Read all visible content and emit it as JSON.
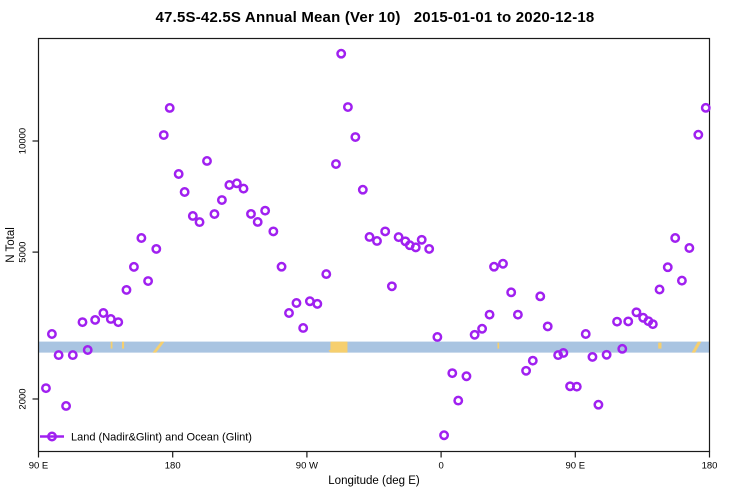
{
  "chart": {
    "title": "47.5S-42.5S Annual Mean (Ver 10)   2015-01-01 to 2020-12-18"
  },
  "chart_data": {
    "type": "scatter",
    "title": "47.5S-42.5S Annual Mean (Ver 10)   2015-01-01 to 2020-12-18",
    "xlabel": "Longitude (deg E)",
    "ylabel": "N Total",
    "x_axis": {
      "note": "longitude axis wraps eastward from 90E; plot coords run 90..540",
      "ticks": [
        {
          "lon": 90,
          "label": "90 E"
        },
        {
          "lon": 180,
          "label": "180"
        },
        {
          "lon": 270,
          "label": "90 W"
        },
        {
          "lon": 360,
          "label": "0"
        },
        {
          "lon": 450,
          "label": "90 E"
        },
        {
          "lon": 540,
          "label": "180"
        }
      ]
    },
    "y_axis": {
      "scale": "log10",
      "ticks": [
        {
          "value": 2000,
          "label": "2000"
        },
        {
          "value": 5000,
          "label": "5000"
        },
        {
          "value": 10000,
          "label": "10000"
        }
      ],
      "range": [
        1440,
        18950
      ]
    },
    "grid": false,
    "legend": {
      "position": "bottom-left",
      "label": "Land (Nadir&Glint) and Ocean (Glint)",
      "marker": "open-circle-on-line"
    },
    "colors": {
      "points": "#A020F0",
      "ocean_band": "#A9C4E1",
      "land_band": "#F6CF6E",
      "axis": "#1a1a1a"
    },
    "map_band": {
      "description": "latitude-strip world map band (ocean blue, land tan)",
      "value_range": [
        2671,
        2861
      ],
      "land_patches": [
        {
          "lon": [
            138.4,
            139.6
          ],
          "shape": "sliver"
        },
        {
          "lon": [
            146.0,
            147.4
          ],
          "shape": "sliver"
        },
        {
          "lon": [
            166.5,
            174.5
          ],
          "shape": "diag"
        },
        {
          "lon": [
            285.8,
            297.2
          ],
          "shape": "block"
        },
        {
          "lon": [
            397.8,
            398.9
          ],
          "shape": "dot"
        },
        {
          "lon": [
            505.6,
            507.8
          ],
          "shape": "dot"
        },
        {
          "lon": [
            528.0,
            534.5
          ],
          "shape": "diag"
        }
      ]
    },
    "series": [
      {
        "name": "Land (Nadir&Glint) and Ocean (Glint)",
        "marker": "open-circle",
        "color": "#A020F0",
        "points": [
          [
            95,
            2140
          ],
          [
            99,
            3000
          ],
          [
            103.5,
            2630
          ],
          [
            108.5,
            1915
          ],
          [
            113,
            2630
          ],
          [
            119.5,
            3230
          ],
          [
            123,
            2715
          ],
          [
            128,
            3275
          ],
          [
            133.5,
            3420
          ],
          [
            138.5,
            3295
          ],
          [
            143.5,
            3230
          ],
          [
            149,
            3950
          ],
          [
            154,
            4560
          ],
          [
            159,
            5460
          ],
          [
            163.5,
            4175
          ],
          [
            169,
            5100
          ],
          [
            174,
            10380
          ],
          [
            178,
            12290
          ],
          [
            184,
            8140
          ],
          [
            188,
            7275
          ],
          [
            193.5,
            6265
          ],
          [
            198,
            6030
          ],
          [
            203,
            8830
          ],
          [
            208,
            6340
          ],
          [
            213,
            6920
          ],
          [
            218,
            7600
          ],
          [
            223,
            7680
          ],
          [
            227.5,
            7430
          ],
          [
            232.5,
            6345
          ],
          [
            237,
            6035
          ],
          [
            242,
            6475
          ],
          [
            247.5,
            5690
          ],
          [
            253,
            4565
          ],
          [
            258,
            3420
          ],
          [
            263,
            3640
          ],
          [
            267.5,
            3115
          ],
          [
            272,
            3680
          ],
          [
            277,
            3620
          ],
          [
            283,
            4360
          ],
          [
            289.5,
            8660
          ],
          [
            293,
            17240
          ],
          [
            297.5,
            12360
          ],
          [
            302.5,
            10250
          ],
          [
            307.5,
            7380
          ],
          [
            312,
            5495
          ],
          [
            317,
            5360
          ],
          [
            322.5,
            5690
          ],
          [
            327,
            4040
          ],
          [
            331.5,
            5490
          ],
          [
            336,
            5350
          ],
          [
            339,
            5220
          ],
          [
            343,
            5150
          ],
          [
            347,
            5400
          ],
          [
            352,
            5100
          ],
          [
            357.5,
            2945
          ],
          [
            362,
            1595
          ],
          [
            367.5,
            2350
          ],
          [
            371.5,
            1980
          ],
          [
            377,
            2305
          ],
          [
            382.5,
            2985
          ],
          [
            387.5,
            3100
          ],
          [
            392.5,
            3385
          ],
          [
            395.5,
            4565
          ],
          [
            401.5,
            4650
          ],
          [
            407,
            3890
          ],
          [
            411.5,
            3385
          ],
          [
            417,
            2385
          ],
          [
            421.5,
            2540
          ],
          [
            426.5,
            3795
          ],
          [
            431.5,
            3145
          ],
          [
            438.5,
            2630
          ],
          [
            442,
            2665
          ],
          [
            446.5,
            2165
          ],
          [
            451,
            2160
          ],
          [
            457,
            3000
          ],
          [
            461.5,
            2600
          ],
          [
            465.5,
            1930
          ],
          [
            471,
            2635
          ],
          [
            478,
            3240
          ],
          [
            481.5,
            2735
          ],
          [
            485.5,
            3245
          ],
          [
            491,
            3435
          ],
          [
            495.5,
            3320
          ],
          [
            499,
            3250
          ],
          [
            502,
            3190
          ],
          [
            506.5,
            3960
          ],
          [
            512,
            4550
          ],
          [
            517,
            5460
          ],
          [
            521.5,
            4185
          ],
          [
            526.5,
            5130
          ],
          [
            532.5,
            10400
          ],
          [
            537.5,
            12300
          ]
        ]
      }
    ]
  }
}
